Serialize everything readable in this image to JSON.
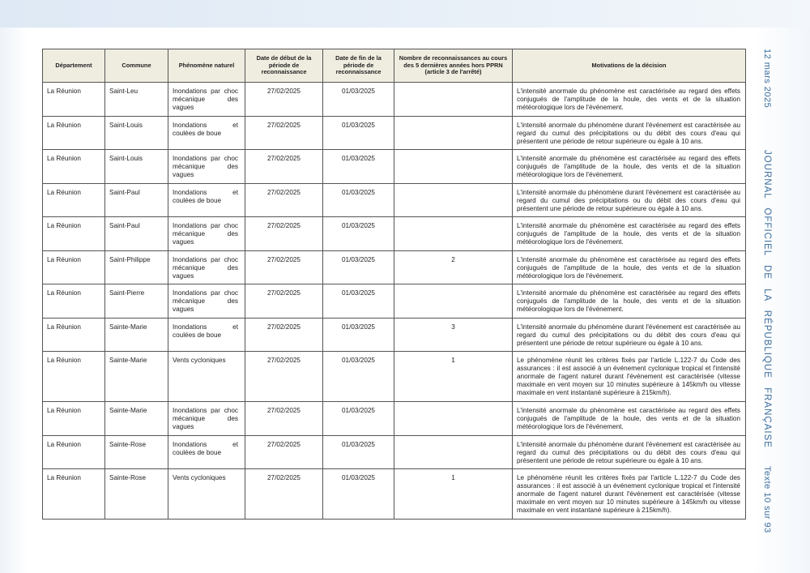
{
  "side": {
    "date": "12 mars 2025",
    "journal": "JOURNAL OFFICIEL DE LA RÉPUBLIQUE FRANÇAISE",
    "page": "Texte 10 sur 93"
  },
  "headers": [
    "Département",
    "Commune",
    "Phénomène naturel",
    "Date de début de la période de reconnaissance",
    "Date de fin de la période de reconnaissance",
    "Nombre de reconnaissances au cours des 5 dernières années hors PPRN (article 3 de l'arrêté)",
    "Motivations de la décision"
  ],
  "rows": [
    [
      "La Réunion",
      "Saint-Leu",
      "Inondations par choc mécanique des vagues",
      "27/02/2025",
      "01/03/2025",
      "",
      "L'intensité anormale du phénomène est caractérisée au regard des effets conjugués de l'amplitude de la houle, des vents et de la situation météorologique lors de l'événement."
    ],
    [
      "La Réunion",
      "Saint-Louis",
      "Inondations et coulées de boue",
      "27/02/2025",
      "01/03/2025",
      "",
      "L'intensité anormale du phénomène durant l'événement est caractérisée au regard du cumul des précipitations ou du débit des cours d'eau qui présentent une période de retour supérieure ou égale à 10 ans."
    ],
    [
      "La Réunion",
      "Saint-Louis",
      "Inondations par choc mécanique des vagues",
      "27/02/2025",
      "01/03/2025",
      "",
      "L'intensité anormale du phénomène est caractérisée au regard des effets conjugués de l'amplitude de la houle, des vents et de la situation météorologique lors de l'événement."
    ],
    [
      "La Réunion",
      "Saint-Paul",
      "Inondations et coulées de boue",
      "27/02/2025",
      "01/03/2025",
      "",
      "L'intensité anormale du phénomène durant l'événement est caractérisée au regard du cumul des précipitations ou du débit des cours d'eau qui présentent une période de retour supérieure ou égale à 10 ans."
    ],
    [
      "La Réunion",
      "Saint-Paul",
      "Inondations par choc mécanique des vagues",
      "27/02/2025",
      "01/03/2025",
      "",
      "L'intensité anormale du phénomène est caractérisée au regard des effets conjugués de l'amplitude de la houle, des vents et de la situation météorologique lors de l'événement."
    ],
    [
      "La Réunion",
      "Saint-Philippe",
      "Inondations par choc mécanique des vagues",
      "27/02/2025",
      "01/03/2025",
      "2",
      "L'intensité anormale du phénomène est caractérisée au regard des effets conjugués de l'amplitude de la houle, des vents et de la situation météorologique lors de l'événement."
    ],
    [
      "La Réunion",
      "Saint-Pierre",
      "Inondations par choc mécanique des vagues",
      "27/02/2025",
      "01/03/2025",
      "",
      "L'intensité anormale du phénomène est caractérisée au regard des effets conjugués de l'amplitude de la houle, des vents et de la situation météorologique lors de l'événement."
    ],
    [
      "La Réunion",
      "Sainte-Marie",
      "Inondations et coulées de boue",
      "27/02/2025",
      "01/03/2025",
      "3",
      "L'intensité anormale du phénomène durant l'événement est caractérisée au regard du cumul des précipitations ou du débit des cours d'eau qui présentent une période de retour supérieure ou égale à 10 ans."
    ],
    [
      "La Réunion",
      "Sainte-Marie",
      "Vents cycloniques",
      "27/02/2025",
      "01/03/2025",
      "1",
      "Le phénomène réunit les critères fixés par l'article L.122-7 du Code des assurances : il est associé à un événement cyclonique tropical et l'intensité anormale de l'agent naturel durant l'événement est caractérisée (vitesse maximale en vent moyen sur 10 minutes supérieure à 145km/h ou vitesse maximale en vent instantané supérieure à 215km/h)."
    ],
    [
      "La Réunion",
      "Sainte-Marie",
      "Inondations par choc mécanique des vagues",
      "27/02/2025",
      "01/03/2025",
      "",
      "L'intensité anormale du phénomène est caractérisée au regard des effets conjugués de l'amplitude de la houle, des vents et de la situation météorologique lors de l'événement."
    ],
    [
      "La Réunion",
      "Sainte-Rose",
      "Inondations et coulées de boue",
      "27/02/2025",
      "01/03/2025",
      "",
      "L'intensité anormale du phénomène durant l'événement est caractérisée au regard du cumul des précipitations ou du débit des cours d'eau qui présentent une période de retour supérieure ou égale à 10 ans."
    ],
    [
      "La Réunion",
      "Sainte-Rose",
      "Vents cycloniques",
      "27/02/2025",
      "01/03/2025",
      "1",
      "Le phénomène réunit les critères fixés par l'article L.122-7 du Code des assurances : il est associé à un événement cyclonique tropical et l'intensité anormale de l'agent naturel durant l'événement est caractérisée (vitesse maximale en vent moyen sur 10 minutes supérieure à 145km/h ou vitesse maximale en vent instantané supérieure à 215km/h)."
    ]
  ]
}
